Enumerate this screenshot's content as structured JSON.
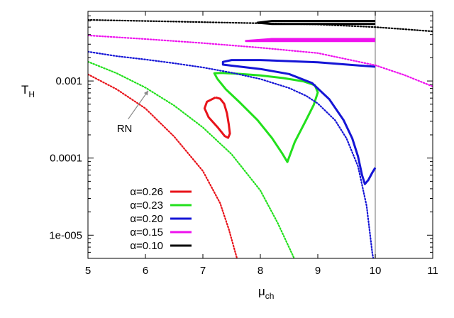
{
  "chart_data": {
    "type": "line",
    "title": "",
    "xlabel": "μ",
    "xlabel_sub": "ch",
    "ylabel": "T",
    "ylabel_sub": "H",
    "xscale": "linear",
    "yscale": "log",
    "xlim": [
      5,
      11
    ],
    "ylim": [
      5e-06,
      0.008
    ],
    "xticks": [
      5,
      6,
      7,
      8,
      9,
      10,
      11
    ],
    "xtick_labels": [
      "5",
      "6",
      "7",
      "8",
      "9",
      "10",
      "11"
    ],
    "yticks": [
      1e-05,
      0.0001,
      0.001
    ],
    "ytick_labels": [
      "1e-005",
      "0.0001",
      "0.001"
    ],
    "vertical_line_x": 10,
    "vertical_line_color": "#a0a0a0",
    "annotation": {
      "text": "RN",
      "arrow_from": [
        5.7,
        0.00032
      ],
      "arrow_to": [
        6.05,
        0.00075
      ]
    },
    "legend_position": "bottom-left",
    "series": [
      {
        "name": "α=0.26",
        "color": "#e8131a",
        "rn": [
          [
            5,
            0.00122
          ],
          [
            5.5,
            0.00078
          ],
          [
            6,
            0.00044
          ],
          [
            6.5,
            0.00019
          ],
          [
            7,
            6.8e-05
          ],
          [
            7.3,
            2.6e-05
          ],
          [
            7.45,
            1.2e-05
          ],
          [
            7.6,
            4.8e-06
          ]
        ],
        "branch": [
          [
            7.22,
            0.000611
          ],
          [
            7.07,
            0.000537
          ],
          [
            7.03,
            0.000442
          ],
          [
            7.1,
            0.000338
          ],
          [
            7.25,
            0.000254
          ],
          [
            7.38,
            0.000193
          ],
          [
            7.44,
            0.000183
          ],
          [
            7.47,
            0.000208
          ],
          [
            7.45,
            0.000273
          ],
          [
            7.42,
            0.000379
          ],
          [
            7.37,
            0.000506
          ],
          [
            7.3,
            0.000589
          ],
          [
            7.22,
            0.000611
          ]
        ]
      },
      {
        "name": "α=0.23",
        "color": "#22e01c",
        "rn": [
          [
            5,
            0.00178
          ],
          [
            5.5,
            0.00126
          ],
          [
            6,
            0.00082
          ],
          [
            6.5,
            0.00048
          ],
          [
            7,
            0.00025
          ],
          [
            7.5,
            0.000112
          ],
          [
            8,
            3.8e-05
          ],
          [
            8.3,
            1.45e-05
          ],
          [
            8.6,
            4.8e-06
          ]
        ],
        "branch": [
          [
            7.25,
            0.00107
          ],
          [
            7.2,
            0.00126
          ],
          [
            7.32,
            0.00127
          ],
          [
            7.6,
            0.00124
          ],
          [
            8,
            0.00118
          ],
          [
            8.4,
            0.00109
          ],
          [
            8.75,
            0.00099
          ],
          [
            8.95,
            0.00088
          ],
          [
            9.0,
            0.00071
          ],
          [
            8.93,
            0.00049
          ],
          [
            8.8,
            0.000315
          ],
          [
            8.6,
            0.000162
          ],
          [
            8.47,
            8.9e-05
          ],
          [
            8.38,
            0.000115
          ],
          [
            8.2,
            0.000183
          ],
          [
            7.95,
            0.000311
          ],
          [
            7.65,
            0.00052
          ],
          [
            7.4,
            0.00078
          ],
          [
            7.25,
            0.00107
          ]
        ]
      },
      {
        "name": "α=0.20",
        "color": "#1515d6",
        "rn": [
          [
            5,
            0.0024
          ],
          [
            5.5,
            0.0021
          ],
          [
            6,
            0.0019
          ],
          [
            6.5,
            0.0017
          ],
          [
            7,
            0.0015
          ],
          [
            7.5,
            0.00128
          ],
          [
            8,
            0.00106
          ],
          [
            8.5,
            0.00081
          ],
          [
            8.8,
            0.00064
          ],
          [
            9,
            0.00051
          ],
          [
            9.3,
            0.00031
          ],
          [
            9.5,
            0.00018
          ],
          [
            9.7,
            7.8e-05
          ],
          [
            9.85,
            2.4e-05
          ],
          [
            9.95,
            5.8e-06
          ],
          [
            9.97,
            4.8e-06
          ]
        ],
        "branch": [
          [
            10,
            7.5e-05
          ],
          [
            9.95,
            6.5e-05
          ],
          [
            9.88,
            5.2e-05
          ],
          [
            9.82,
            4.6e-05
          ],
          [
            9.77,
            6e-05
          ],
          [
            9.7,
            0.000105
          ],
          [
            9.6,
            0.00018
          ],
          [
            9.45,
            0.00031
          ],
          [
            9.2,
            0.00058
          ],
          [
            8.9,
            0.00094
          ],
          [
            8.5,
            0.00123
          ],
          [
            8.0,
            0.00143
          ],
          [
            7.5,
            0.00158
          ],
          [
            7.35,
            0.00163
          ],
          [
            7.35,
            0.00177
          ],
          [
            7.5,
            0.00187
          ],
          [
            8,
            0.00187
          ],
          [
            9,
            0.00175
          ],
          [
            10,
            0.00153
          ]
        ]
      },
      {
        "name": "α=0.15",
        "color": "#ee11ee",
        "rn": [
          [
            5,
            0.0039
          ],
          [
            6,
            0.0035
          ],
          [
            7,
            0.0031
          ],
          [
            8,
            0.0027
          ],
          [
            9,
            0.0023
          ],
          [
            10,
            0.0016
          ],
          [
            10.5,
            0.0012
          ],
          [
            11,
            0.00085
          ]
        ],
        "branch": [
          [
            10,
            0.0033
          ],
          [
            9,
            0.0033
          ],
          [
            8.2,
            0.0033
          ],
          [
            7.75,
            0.0033
          ],
          [
            8.2,
            0.0035
          ],
          [
            9,
            0.0035
          ],
          [
            10,
            0.0035
          ]
        ]
      },
      {
        "name": "α=0.10",
        "color": "#000000",
        "rn": [
          [
            5,
            0.0062
          ],
          [
            6,
            0.006
          ],
          [
            7,
            0.0058
          ],
          [
            8,
            0.0056
          ],
          [
            9,
            0.0054
          ],
          [
            10,
            0.005
          ],
          [
            10.5,
            0.0047
          ],
          [
            11,
            0.0044
          ]
        ],
        "branch": [
          [
            10,
            0.0055
          ],
          [
            9,
            0.0055
          ],
          [
            8.2,
            0.0055
          ],
          [
            7.95,
            0.0057
          ],
          [
            8.2,
            0.006
          ],
          [
            9,
            0.006
          ],
          [
            10,
            0.006
          ]
        ]
      }
    ]
  }
}
